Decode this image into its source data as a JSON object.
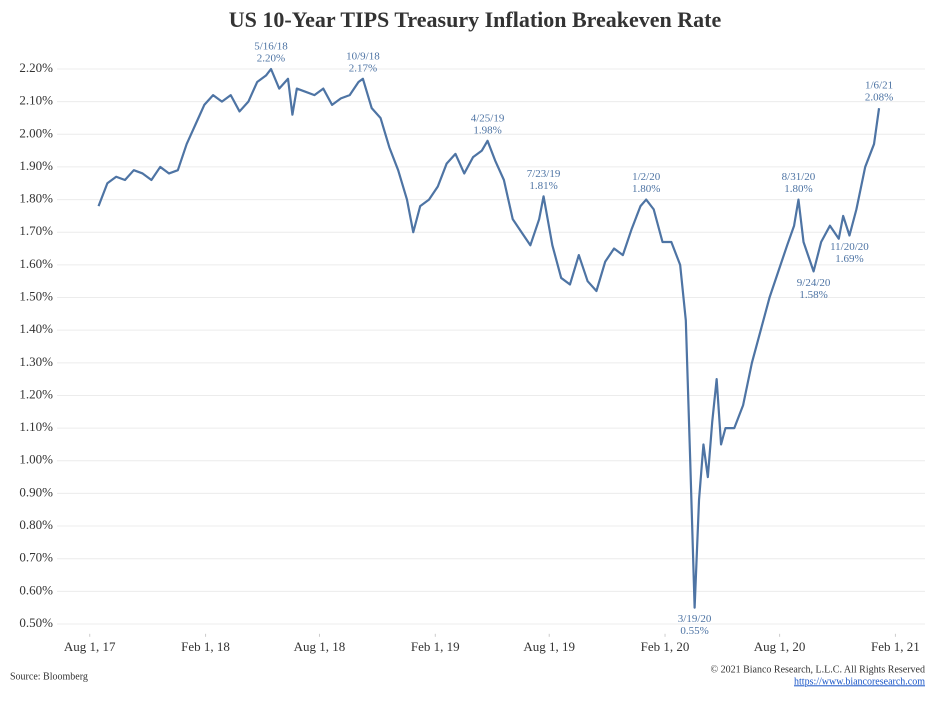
{
  "chart_data": {
    "type": "line",
    "title": "US 10-Year TIPS Treasury Inflation Breakeven Rate",
    "source": "Source: Bloomberg",
    "copyright": "© 2021 Bianco Research, L.L.C. All Rights Reserved",
    "url": "https://www.biancoresearch.com",
    "grid": true,
    "x": [
      "2017-08-15",
      "2017-08-29",
      "2017-09-12",
      "2017-09-26",
      "2017-10-10",
      "2017-10-24",
      "2017-11-07",
      "2017-11-21",
      "2017-12-05",
      "2017-12-19",
      "2018-01-02",
      "2018-01-16",
      "2018-01-30",
      "2018-02-13",
      "2018-02-27",
      "2018-03-13",
      "2018-03-27",
      "2018-04-10",
      "2018-04-24",
      "2018-05-08",
      "2018-05-16",
      "2018-05-29",
      "2018-06-12",
      "2018-06-19",
      "2018-06-26",
      "2018-07-10",
      "2018-07-24",
      "2018-08-07",
      "2018-08-21",
      "2018-09-04",
      "2018-09-18",
      "2018-10-02",
      "2018-10-09",
      "2018-10-23",
      "2018-11-06",
      "2018-11-20",
      "2018-12-04",
      "2018-12-18",
      "2018-12-28",
      "2019-01-08",
      "2019-01-22",
      "2019-02-05",
      "2019-02-19",
      "2019-03-05",
      "2019-03-19",
      "2019-04-02",
      "2019-04-16",
      "2019-04-25",
      "2019-05-07",
      "2019-05-21",
      "2019-06-04",
      "2019-06-18",
      "2019-07-02",
      "2019-07-16",
      "2019-07-23",
      "2019-08-06",
      "2019-08-20",
      "2019-09-03",
      "2019-09-17",
      "2019-10-01",
      "2019-10-15",
      "2019-10-29",
      "2019-11-12",
      "2019-11-26",
      "2019-12-10",
      "2019-12-24",
      "2020-01-02",
      "2020-01-14",
      "2020-01-28",
      "2020-02-11",
      "2020-02-25",
      "2020-03-05",
      "2020-03-12",
      "2020-03-19",
      "2020-03-26",
      "2020-04-02",
      "2020-04-09",
      "2020-04-16",
      "2020-04-23",
      "2020-04-30",
      "2020-05-07",
      "2020-05-21",
      "2020-06-04",
      "2020-06-18",
      "2020-07-02",
      "2020-07-16",
      "2020-07-30",
      "2020-08-13",
      "2020-08-24",
      "2020-08-31",
      "2020-09-08",
      "2020-09-24",
      "2020-10-06",
      "2020-10-20",
      "2020-11-03",
      "2020-11-10",
      "2020-11-20",
      "2020-12-01",
      "2020-12-15",
      "2020-12-29",
      "2021-01-06"
    ],
    "series": [
      {
        "color": "#4e74a4",
        "values": [
          1.78,
          1.85,
          1.87,
          1.86,
          1.89,
          1.88,
          1.86,
          1.9,
          1.88,
          1.89,
          1.97,
          2.03,
          2.09,
          2.12,
          2.1,
          2.12,
          2.07,
          2.1,
          2.16,
          2.18,
          2.2,
          2.14,
          2.17,
          2.06,
          2.14,
          2.13,
          2.12,
          2.14,
          2.09,
          2.11,
          2.12,
          2.16,
          2.17,
          2.08,
          2.05,
          1.96,
          1.89,
          1.8,
          1.7,
          1.78,
          1.8,
          1.84,
          1.91,
          1.94,
          1.88,
          1.93,
          1.95,
          1.98,
          1.92,
          1.86,
          1.74,
          1.7,
          1.66,
          1.74,
          1.81,
          1.66,
          1.56,
          1.54,
          1.63,
          1.55,
          1.52,
          1.61,
          1.65,
          1.63,
          1.71,
          1.78,
          1.8,
          1.77,
          1.67,
          1.67,
          1.6,
          1.43,
          1.0,
          0.55,
          0.88,
          1.05,
          0.95,
          1.12,
          1.25,
          1.05,
          1.1,
          1.1,
          1.17,
          1.3,
          1.4,
          1.5,
          1.58,
          1.66,
          1.72,
          1.8,
          1.67,
          1.58,
          1.67,
          1.72,
          1.68,
          1.75,
          1.69,
          1.77,
          1.9,
          1.97,
          2.08
        ]
      }
    ],
    "xlim": [
      "2017-06-10",
      "2021-03-20"
    ],
    "xticks": [
      {
        "value": "2017-08-01",
        "label": "Aug 1, 17"
      },
      {
        "value": "2018-02-01",
        "label": "Feb 1, 18"
      },
      {
        "value": "2018-08-01",
        "label": "Aug 1, 18"
      },
      {
        "value": "2019-02-01",
        "label": "Feb 1, 19"
      },
      {
        "value": "2019-08-01",
        "label": "Aug 1, 19"
      },
      {
        "value": "2020-02-01",
        "label": "Feb 1, 20"
      },
      {
        "value": "2020-08-01",
        "label": "Aug 1, 20"
      },
      {
        "value": "2021-02-01",
        "label": "Feb 1, 21"
      }
    ],
    "ylim": [
      0.47,
      2.26
    ],
    "yticks": [
      {
        "value": 0.5,
        "label": "0.50%"
      },
      {
        "value": 0.6,
        "label": "0.60%"
      },
      {
        "value": 0.7,
        "label": "0.70%"
      },
      {
        "value": 0.8,
        "label": "0.80%"
      },
      {
        "value": 0.9,
        "label": "0.90%"
      },
      {
        "value": 1.0,
        "label": "1.00%"
      },
      {
        "value": 1.1,
        "label": "1.10%"
      },
      {
        "value": 1.2,
        "label": "1.20%"
      },
      {
        "value": 1.3,
        "label": "1.30%"
      },
      {
        "value": 1.4,
        "label": "1.40%"
      },
      {
        "value": 1.5,
        "label": "1.50%"
      },
      {
        "value": 1.6,
        "label": "1.60%"
      },
      {
        "value": 1.7,
        "label": "1.70%"
      },
      {
        "value": 1.8,
        "label": "1.80%"
      },
      {
        "value": 1.9,
        "label": "1.90%"
      },
      {
        "value": 2.0,
        "label": "2.00%"
      },
      {
        "value": 2.1,
        "label": "2.10%"
      },
      {
        "value": 2.2,
        "label": "2.20%"
      }
    ],
    "annotations": [
      {
        "x": "2018-05-16",
        "y": 2.2,
        "date_label": "5/16/18",
        "value_label": "2.20%",
        "position": "above"
      },
      {
        "x": "2018-10-09",
        "y": 2.17,
        "date_label": "10/9/18",
        "value_label": "2.17%",
        "position": "above"
      },
      {
        "x": "2019-04-25",
        "y": 1.98,
        "date_label": "4/25/19",
        "value_label": "1.98%",
        "position": "above"
      },
      {
        "x": "2019-07-23",
        "y": 1.81,
        "date_label": "7/23/19",
        "value_label": "1.81%",
        "position": "above"
      },
      {
        "x": "2020-01-02",
        "y": 1.8,
        "date_label": "1/2/20",
        "value_label": "1.80%",
        "position": "above"
      },
      {
        "x": "2020-03-19",
        "y": 0.55,
        "date_label": "3/19/20",
        "value_label": "0.55%",
        "position": "below"
      },
      {
        "x": "2020-08-31",
        "y": 1.8,
        "date_label": "8/31/20",
        "value_label": "1.80%",
        "position": "above"
      },
      {
        "x": "2020-09-24",
        "y": 1.58,
        "date_label": "9/24/20",
        "value_label": "1.58%",
        "position": "below"
      },
      {
        "x": "2020-11-20",
        "y": 1.69,
        "date_label": "11/20/20",
        "value_label": "1.69%",
        "position": "below"
      },
      {
        "x": "2021-01-06",
        "y": 2.08,
        "date_label": "1/6/21",
        "value_label": "2.08%",
        "position": "above"
      }
    ]
  }
}
